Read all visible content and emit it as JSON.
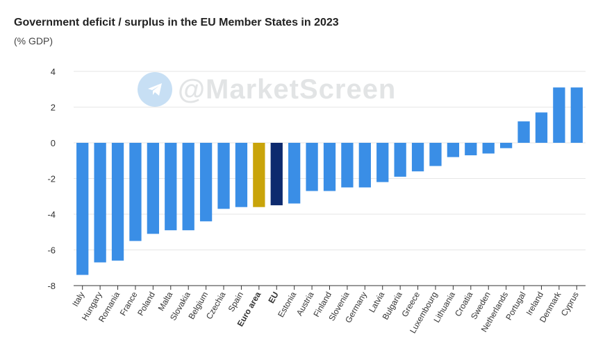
{
  "watermark": "@MarketScreen",
  "colors": {
    "default": "#3a8ee6",
    "euro_area": "#c9a40a",
    "eu": "#0d2a6e",
    "grid": "#e6e6e6"
  },
  "chart_data": {
    "type": "bar",
    "title": "Government deficit / surplus in the EU Member States in 2023",
    "subtitle": "(% GDP)",
    "xlabel": "",
    "ylabel": "",
    "ylim": [
      -8,
      4
    ],
    "yticks": [
      4,
      2,
      0,
      -2,
      -4,
      -6,
      -8
    ],
    "categories": [
      "Italy",
      "Hungary",
      "Romania",
      "France",
      "Poland",
      "Malta",
      "Slovakia",
      "Belgium",
      "Czechia",
      "Spain",
      "Euro area",
      "EU",
      "Estonia",
      "Austria",
      "Finland",
      "Slovenia",
      "Germany",
      "Latvia",
      "Bulgaria",
      "Greece",
      "Luxembourg",
      "Lithuania",
      "Croatia",
      "Sweden",
      "Netherlands",
      "Portugal",
      "Ireland",
      "Denmark",
      "Cyprus"
    ],
    "values": [
      -7.4,
      -6.7,
      -6.6,
      -5.5,
      -5.1,
      -4.9,
      -4.9,
      -4.4,
      -3.7,
      -3.6,
      -3.6,
      -3.5,
      -3.4,
      -2.7,
      -2.7,
      -2.5,
      -2.5,
      -2.2,
      -1.9,
      -1.6,
      -1.3,
      -0.8,
      -0.7,
      -0.6,
      -0.3,
      1.2,
      1.7,
      3.1,
      3.1
    ],
    "highlight": {
      "Euro area": "euro_area",
      "EU": "eu"
    },
    "bold_categories": [
      "Euro area",
      "EU"
    ]
  }
}
